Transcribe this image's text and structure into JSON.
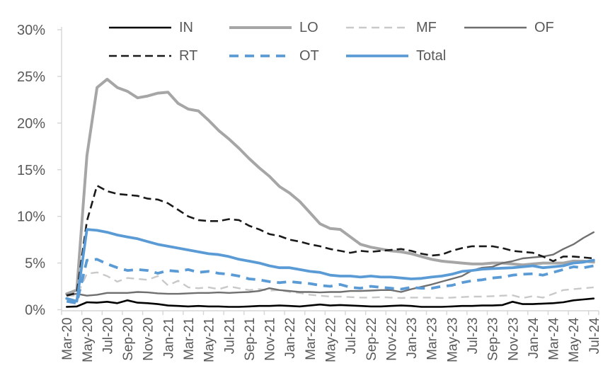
{
  "colors": {
    "background": "#ffffff",
    "axis": "#d6d6d6",
    "text": "#595959",
    "blue_accent": "#5b9bd5",
    "gray_light": "#c9c9c9",
    "gray_medium": "#a6a6a6",
    "gray_dark": "#6f6f6f",
    "black": "#000000"
  },
  "chart_data": {
    "type": "line",
    "title": "",
    "xlabel": "",
    "ylabel": "",
    "ylim": [
      0,
      30
    ],
    "yticks": [
      0,
      5,
      10,
      15,
      20,
      25,
      30
    ],
    "ytick_suffix": "%",
    "grid": false,
    "legend_position": "top",
    "x_label_interval": 2,
    "x": [
      "Mar-20",
      "Apr-20",
      "May-20",
      "Jun-20",
      "Jul-20",
      "Aug-20",
      "Sep-20",
      "Oct-20",
      "Nov-20",
      "Dec-20",
      "Jan-21",
      "Feb-21",
      "Mar-21",
      "Apr-21",
      "May-21",
      "Jun-21",
      "Jul-21",
      "Aug-21",
      "Sep-21",
      "Oct-21",
      "Nov-21",
      "Dec-21",
      "Jan-22",
      "Feb-22",
      "Mar-22",
      "Apr-22",
      "May-22",
      "Jun-22",
      "Jul-22",
      "Aug-22",
      "Sep-22",
      "Oct-22",
      "Nov-22",
      "Dec-22",
      "Jan-23",
      "Feb-23",
      "Mar-23",
      "Apr-23",
      "May-23",
      "Jun-23",
      "Jul-23",
      "Aug-23",
      "Sep-23",
      "Oct-23",
      "Nov-23",
      "Dec-23",
      "Jan-24",
      "Feb-24",
      "Mar-24",
      "Apr-24",
      "May-24",
      "Jun-24",
      "Jul-24"
    ],
    "series": [
      {
        "name": "IN",
        "color": "#000000",
        "style": "solid",
        "width": 2.6,
        "values": [
          0.3,
          0.35,
          0.8,
          0.75,
          0.85,
          0.7,
          1.0,
          0.75,
          0.7,
          0.6,
          0.45,
          0.4,
          0.35,
          0.4,
          0.35,
          0.35,
          0.3,
          0.3,
          0.35,
          0.4,
          0.4,
          0.45,
          0.4,
          0.35,
          0.45,
          0.55,
          0.45,
          0.5,
          0.45,
          0.4,
          0.35,
          0.35,
          0.4,
          0.45,
          0.4,
          0.3,
          0.3,
          0.3,
          0.35,
          0.4,
          0.4,
          0.45,
          0.45,
          0.5,
          0.85,
          0.6,
          0.6,
          0.65,
          0.7,
          0.8,
          1.0,
          1.1,
          1.2
        ]
      },
      {
        "name": "LO",
        "color": "#a6a6a6",
        "style": "solid",
        "width": 4,
        "values": [
          1.7,
          2.1,
          16.5,
          23.8,
          24.7,
          23.8,
          23.4,
          22.7,
          22.9,
          23.2,
          23.3,
          22.1,
          21.5,
          21.3,
          20.3,
          19.2,
          18.3,
          17.3,
          16.2,
          15.2,
          14.3,
          13.2,
          12.5,
          11.6,
          10.4,
          9.2,
          8.7,
          8.6,
          7.8,
          7.0,
          6.7,
          6.5,
          6.3,
          6.2,
          6.0,
          5.7,
          5.4,
          5.2,
          5.1,
          5.0,
          4.9,
          4.9,
          5.0,
          5.0,
          4.9,
          4.8,
          4.9,
          5.0,
          5.0,
          5.0,
          5.2,
          5.2,
          5.1
        ]
      },
      {
        "name": "MF",
        "color": "#c9c9c9",
        "style": "dashed",
        "width": 2.4,
        "dash": "11 7",
        "values": [
          1.5,
          1.5,
          3.85,
          4.0,
          3.6,
          3.0,
          3.4,
          3.3,
          3.2,
          3.6,
          2.6,
          3.1,
          2.4,
          2.3,
          2.4,
          2.2,
          2.5,
          2.3,
          2.1,
          2.2,
          2.05,
          2.1,
          1.9,
          1.8,
          1.6,
          1.5,
          1.4,
          1.4,
          1.35,
          1.3,
          1.3,
          1.35,
          1.3,
          1.25,
          1.3,
          1.3,
          1.3,
          1.25,
          1.3,
          1.35,
          1.4,
          1.4,
          1.45,
          1.5,
          1.55,
          1.25,
          1.45,
          1.3,
          1.7,
          2.1,
          2.2,
          2.3,
          2.4
        ]
      },
      {
        "name": "OF",
        "color": "#6f6f6f",
        "style": "solid",
        "width": 2.4,
        "values": [
          1.6,
          1.7,
          1.5,
          1.6,
          1.8,
          1.8,
          1.8,
          1.9,
          1.85,
          1.75,
          1.7,
          1.7,
          1.75,
          1.8,
          1.8,
          1.85,
          1.8,
          1.85,
          1.9,
          2.0,
          2.3,
          2.1,
          2.0,
          1.9,
          1.9,
          1.85,
          1.9,
          1.9,
          2.0,
          2.0,
          2.05,
          2.1,
          2.1,
          1.9,
          2.2,
          2.45,
          2.7,
          3.0,
          3.3,
          3.6,
          4.2,
          4.5,
          4.6,
          5.0,
          5.2,
          5.5,
          5.6,
          5.7,
          5.9,
          6.5,
          7.0,
          7.7,
          8.3
        ]
      },
      {
        "name": "RT",
        "color": "#1a1a1a",
        "style": "dashed",
        "width": 2.6,
        "dash": "11 6",
        "values": [
          1.5,
          1.8,
          9.5,
          13.3,
          12.7,
          12.4,
          12.3,
          12.2,
          11.9,
          11.8,
          11.4,
          10.7,
          10.0,
          9.6,
          9.5,
          9.5,
          9.7,
          9.6,
          9.0,
          8.6,
          8.1,
          7.9,
          7.5,
          7.3,
          7.0,
          6.8,
          6.5,
          6.3,
          6.1,
          6.3,
          6.2,
          6.3,
          6.4,
          6.5,
          6.3,
          6.0,
          5.8,
          5.9,
          6.3,
          6.6,
          6.8,
          6.8,
          6.8,
          6.6,
          6.3,
          6.2,
          6.1,
          5.7,
          5.2,
          5.7,
          5.7,
          5.6,
          5.5
        ]
      },
      {
        "name": "OT",
        "color": "#5b9bd5",
        "style": "dashed",
        "width": 3.8,
        "dash": "13 9",
        "values": [
          0.9,
          0.7,
          5.3,
          5.4,
          4.9,
          4.5,
          4.2,
          4.3,
          4.2,
          3.9,
          4.2,
          4.1,
          4.3,
          4.0,
          4.1,
          3.9,
          3.8,
          3.6,
          3.3,
          3.2,
          3.0,
          2.9,
          3.0,
          2.9,
          2.8,
          2.6,
          2.5,
          2.7,
          2.4,
          2.3,
          2.5,
          2.4,
          2.3,
          2.2,
          2.4,
          2.3,
          2.3,
          2.5,
          2.6,
          2.9,
          3.1,
          3.2,
          3.4,
          3.5,
          3.7,
          3.8,
          3.85,
          3.7,
          4.0,
          4.3,
          4.6,
          4.5,
          4.7
        ]
      },
      {
        "name": "Total",
        "color": "#5b9bd5",
        "style": "solid",
        "width": 3.8,
        "values": [
          1.2,
          0.9,
          8.6,
          8.5,
          8.3,
          8.0,
          7.8,
          7.6,
          7.3,
          7.0,
          6.8,
          6.6,
          6.4,
          6.2,
          6.0,
          5.9,
          5.7,
          5.4,
          5.2,
          5.0,
          4.7,
          4.5,
          4.5,
          4.3,
          4.1,
          4.0,
          3.7,
          3.6,
          3.6,
          3.5,
          3.6,
          3.5,
          3.5,
          3.4,
          3.3,
          3.35,
          3.5,
          3.6,
          3.8,
          4.1,
          4.2,
          4.35,
          4.4,
          4.45,
          4.5,
          4.6,
          4.7,
          4.5,
          4.6,
          4.7,
          5.0,
          5.1,
          5.3
        ]
      }
    ],
    "legend_rows": [
      [
        "IN",
        "LO",
        "MF",
        "OF"
      ],
      [
        "RT",
        "OT",
        "Total"
      ]
    ]
  }
}
